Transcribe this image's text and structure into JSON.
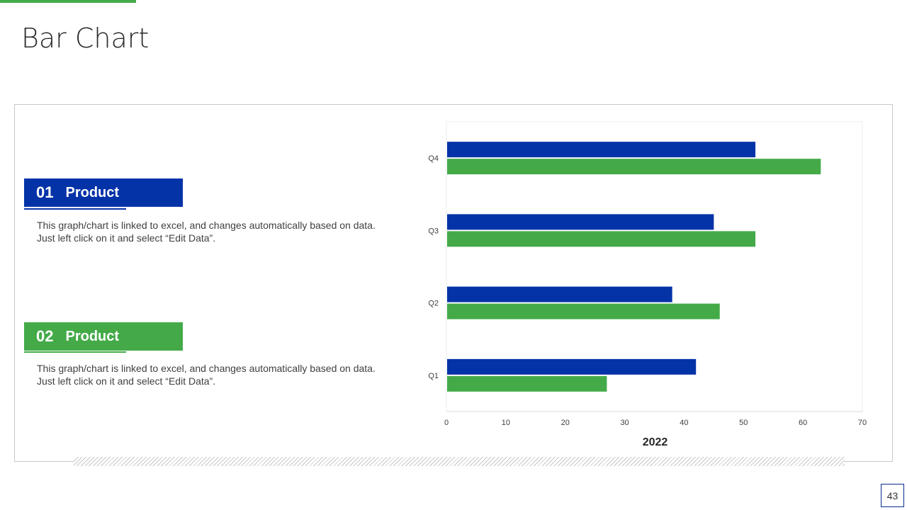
{
  "page": {
    "title": "Bar Chart",
    "page_number": "43"
  },
  "colors": {
    "blue": "#0433a8",
    "green": "#44aa48"
  },
  "products": [
    {
      "number": "01",
      "name": "Product",
      "description": "This graph/chart is linked to excel, and changes automatically based on data. Just left click on it and select “Edit Data”."
    },
    {
      "number": "02",
      "name": "Product",
      "description": "This graph/chart is linked to excel, and changes automatically based on data. Just left click on it and select “Edit Data”."
    }
  ],
  "chart_data": {
    "type": "bar",
    "orientation": "horizontal",
    "title": "",
    "categories": [
      "Q1",
      "Q2",
      "Q3",
      "Q4"
    ],
    "series": [
      {
        "name": "Product 01",
        "color": "#0433a8",
        "values": [
          42,
          38,
          45,
          52
        ]
      },
      {
        "name": "Product 02",
        "color": "#44aa48",
        "values": [
          27,
          46,
          52,
          63
        ]
      }
    ],
    "xlabel": "2022",
    "ylabel": "",
    "xlim": [
      0,
      70
    ],
    "xticks": [
      0,
      10,
      20,
      30,
      40,
      50,
      60,
      70
    ],
    "grid": false,
    "legend": "none"
  }
}
